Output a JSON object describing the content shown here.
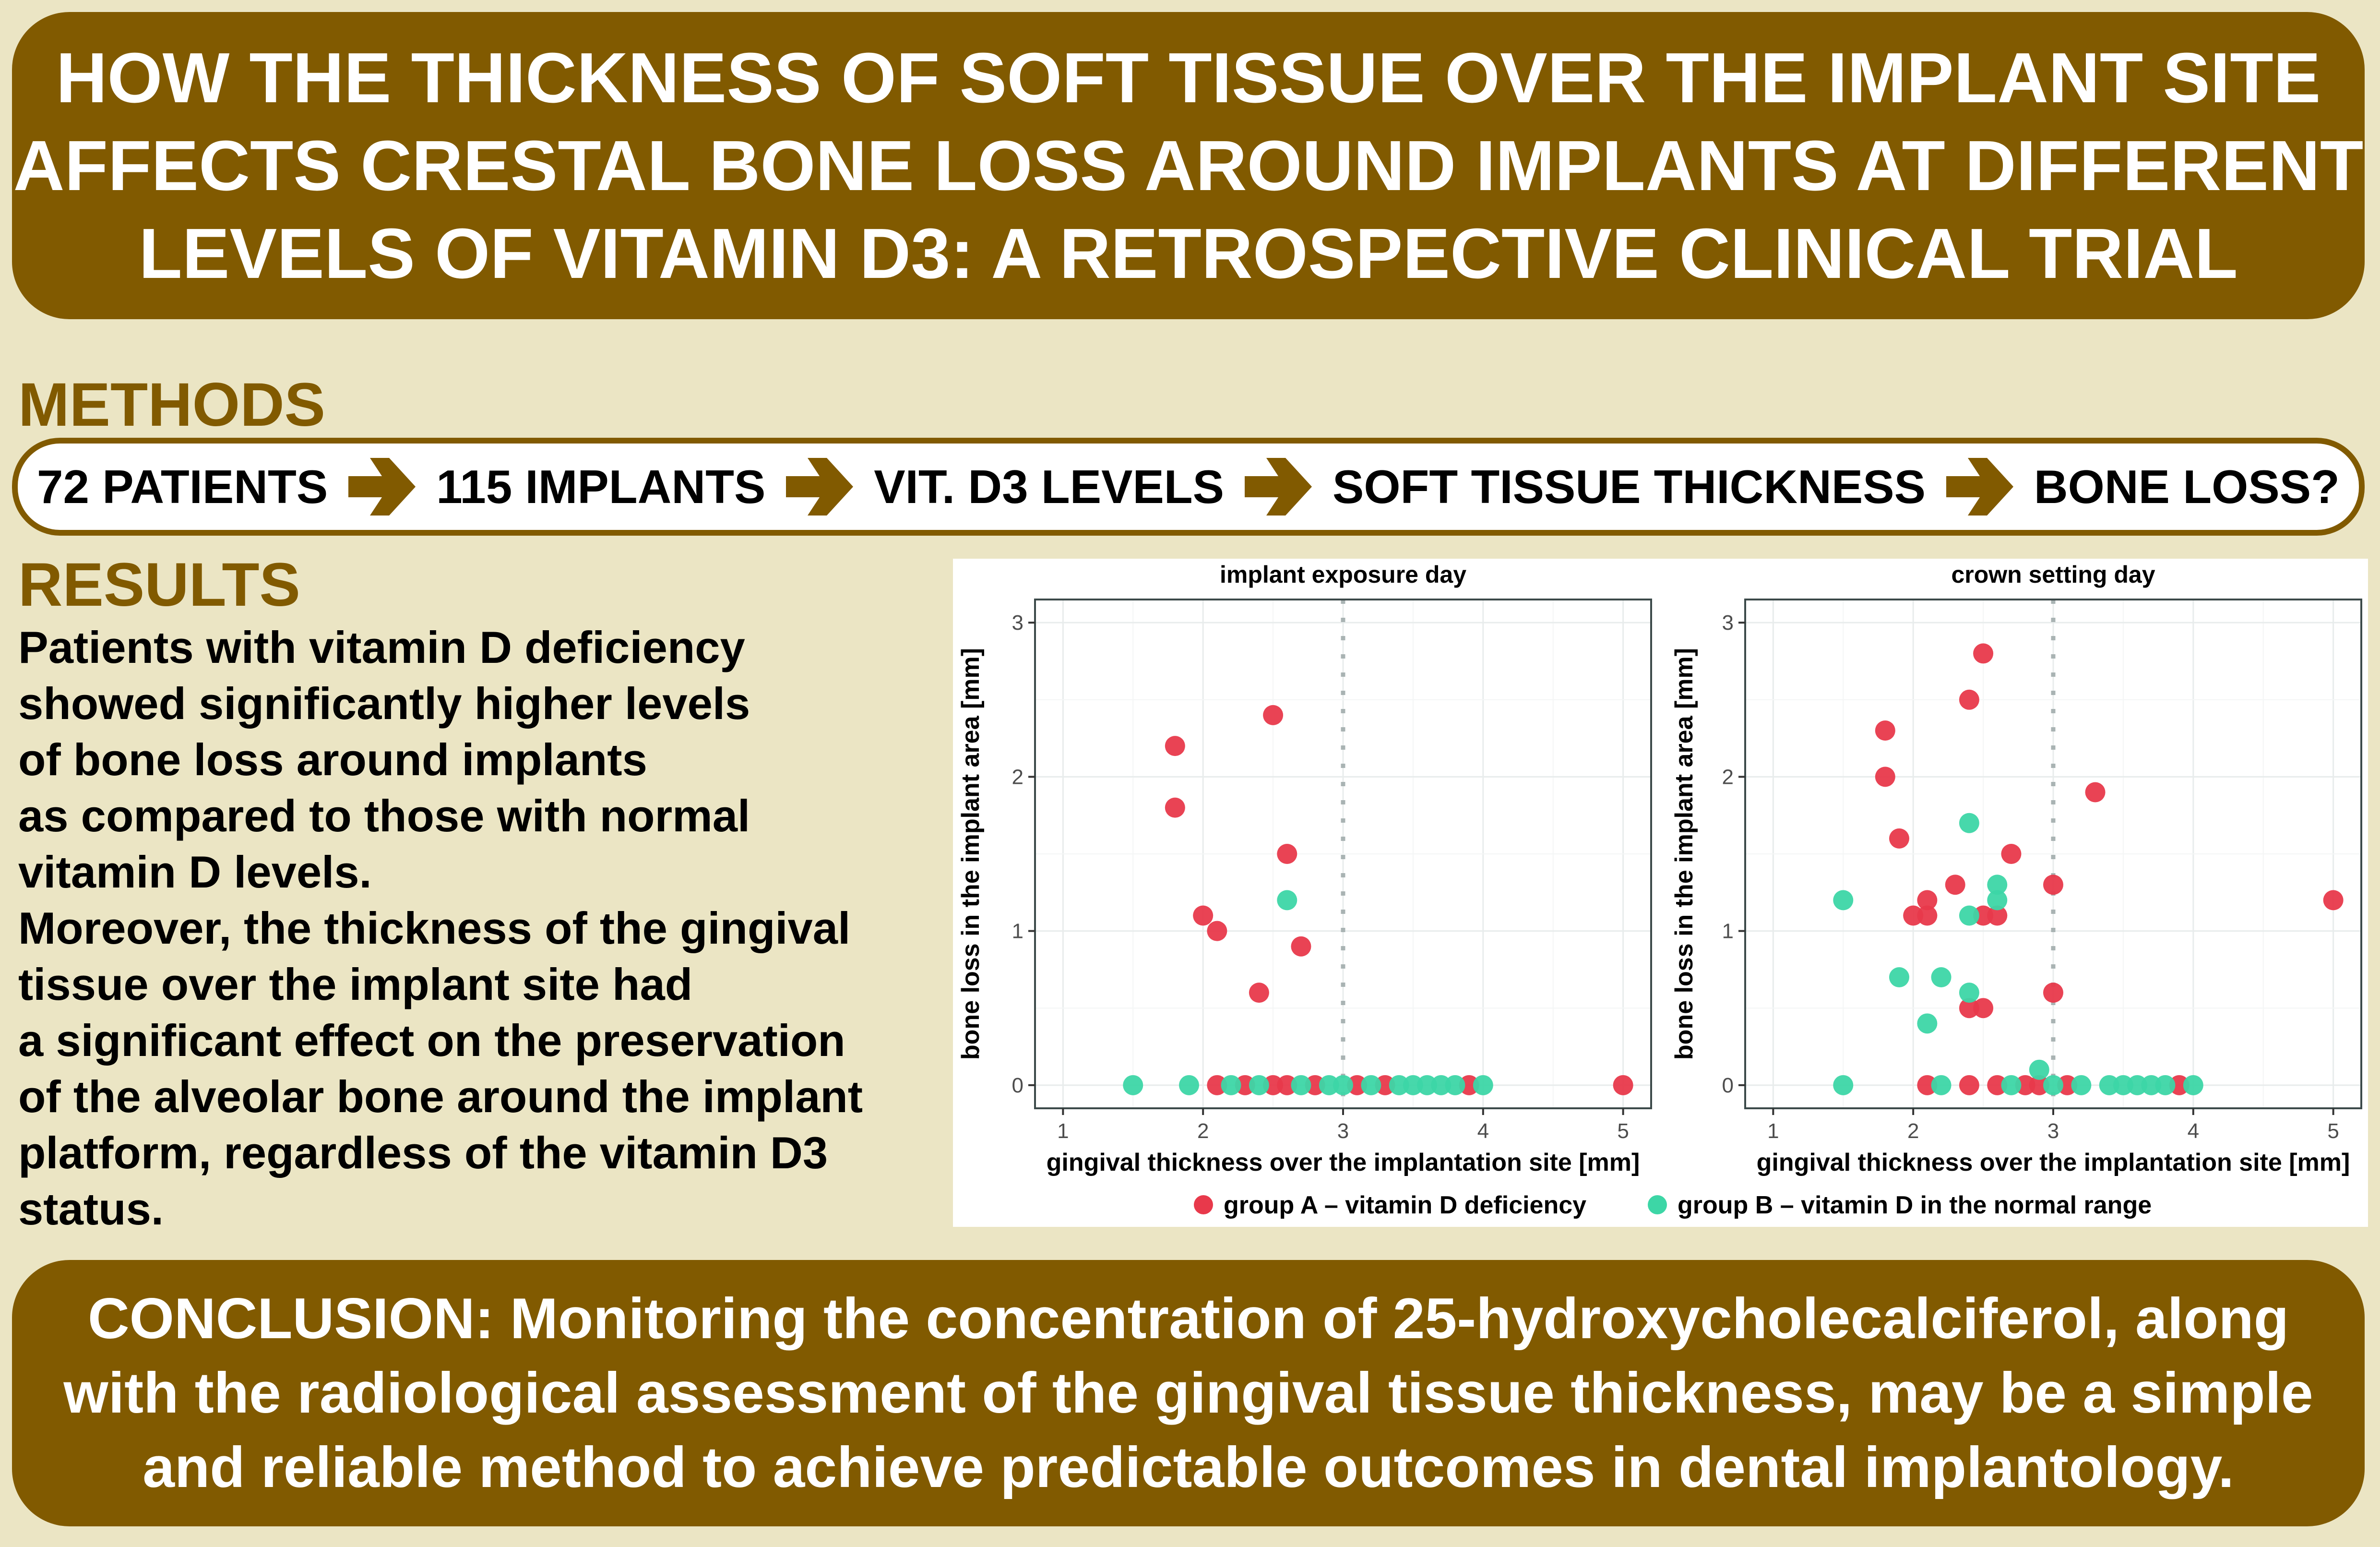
{
  "header": {
    "title_lines": [
      "HOW THE THICKNESS OF SOFT TISSUE OVER THE IMPLANT SITE",
      "AFFECTS CRESTAL BONE LOSS AROUND IMPLANTS AT DIFFERENT",
      "LEVELS OF VITAMIN D3: A RETROSPECTIVE CLINICAL TRIAL"
    ]
  },
  "methods": {
    "heading": "METHODS",
    "steps": [
      "72 PATIENTS",
      "115 IMPLANTS",
      "VIT. D3 LEVELS",
      "SOFT TISSUE THICKNESS",
      "BONE LOSS?"
    ],
    "arrow_icon": "arrow-right-icon"
  },
  "results": {
    "heading": "RESULTS",
    "lines": [
      "Patients with vitamin D deficiency",
      "showed significantly higher levels",
      "of bone loss around implants",
      "as compared to those with normal",
      "vitamin D levels.",
      "Moreover, the thickness of the gingival",
      "tissue over the implant site had",
      "a significant effect on the preservation",
      "of the alveolar bone around the implant",
      "platform, regardless of the vitamin D3",
      "status."
    ]
  },
  "conclusion": {
    "lines": [
      "CONCLUSION: Monitoring the concentration of 25-hydroxycholecalciferol, along",
      "with the radiological assessment of the gingival tissue thickness, may be a simple",
      "and reliable method to achieve predictable outcomes in dental implantology."
    ]
  },
  "colors": {
    "brand": "#815a00",
    "background": "#ebe5c4",
    "group_a": "#e8394b",
    "group_b": "#3dd6a6",
    "reference_line": "#a9b3b3"
  },
  "chart_data": [
    {
      "type": "scatter",
      "title": "implant exposure day",
      "xlabel": "gingival thickness over the implantation site [mm]",
      "ylabel": "bone loss in the implant area [mm]",
      "xlim": [
        0.8,
        5.2
      ],
      "ylim": [
        -0.15,
        3.15
      ],
      "xticks": [
        "1",
        "2",
        "3",
        "4",
        "5"
      ],
      "yticks": [
        "0",
        "1",
        "2",
        "3"
      ],
      "grid": true,
      "reference_x": 3,
      "series": [
        {
          "name": "group A – vitamin D deficiency",
          "color": "#e8394b",
          "points": [
            [
              1.8,
              2.2
            ],
            [
              1.8,
              1.8
            ],
            [
              2.5,
              2.4
            ],
            [
              2.6,
              1.5
            ],
            [
              2.0,
              1.1
            ],
            [
              2.1,
              1.0
            ],
            [
              2.7,
              0.9
            ],
            [
              2.4,
              0.6
            ],
            [
              2.1,
              0
            ],
            [
              2.3,
              0
            ],
            [
              2.5,
              0
            ],
            [
              2.6,
              0
            ],
            [
              2.8,
              0
            ],
            [
              3.1,
              0
            ],
            [
              3.3,
              0
            ],
            [
              3.9,
              0
            ],
            [
              5.0,
              0
            ]
          ]
        },
        {
          "name": "group B – vitamin D in the normal range",
          "color": "#3dd6a6",
          "points": [
            [
              2.6,
              1.2
            ],
            [
              1.5,
              0
            ],
            [
              1.9,
              0
            ],
            [
              2.2,
              0
            ],
            [
              2.4,
              0
            ],
            [
              2.7,
              0
            ],
            [
              2.9,
              0
            ],
            [
              3.0,
              0
            ],
            [
              3.2,
              0
            ],
            [
              3.4,
              0
            ],
            [
              3.5,
              0
            ],
            [
              3.6,
              0
            ],
            [
              3.7,
              0
            ],
            [
              3.8,
              0
            ],
            [
              4.0,
              0
            ]
          ]
        }
      ]
    },
    {
      "type": "scatter",
      "title": "crown setting day",
      "xlabel": "gingival thickness over the implantation site [mm]",
      "ylabel": "bone loss in the implant area [mm]",
      "xlim": [
        0.8,
        5.2
      ],
      "ylim": [
        -0.15,
        3.15
      ],
      "xticks": [
        "1",
        "2",
        "3",
        "4",
        "5"
      ],
      "yticks": [
        "0",
        "1",
        "2",
        "3"
      ],
      "grid": true,
      "reference_x": 3,
      "series": [
        {
          "name": "group A – vitamin D deficiency",
          "color": "#e8394b",
          "points": [
            [
              2.5,
              2.8
            ],
            [
              2.4,
              2.5
            ],
            [
              1.8,
              2.3
            ],
            [
              1.8,
              2.0
            ],
            [
              3.3,
              1.9
            ],
            [
              1.9,
              1.6
            ],
            [
              2.7,
              1.5
            ],
            [
              2.3,
              1.3
            ],
            [
              3.0,
              1.3
            ],
            [
              2.1,
              1.2
            ],
            [
              5.0,
              1.2
            ],
            [
              2.0,
              1.1
            ],
            [
              2.1,
              1.1
            ],
            [
              2.5,
              1.1
            ],
            [
              2.6,
              1.1
            ],
            [
              3.0,
              0.6
            ],
            [
              2.4,
              0.5
            ],
            [
              2.5,
              0.5
            ],
            [
              2.1,
              0
            ],
            [
              2.4,
              0
            ],
            [
              2.6,
              0
            ],
            [
              2.8,
              0
            ],
            [
              2.9,
              0
            ],
            [
              3.1,
              0
            ],
            [
              3.9,
              0
            ]
          ]
        },
        {
          "name": "group B – vitamin D in the normal range",
          "color": "#3dd6a6",
          "points": [
            [
              2.4,
              1.7
            ],
            [
              2.6,
              1.3
            ],
            [
              2.6,
              1.2
            ],
            [
              1.5,
              1.2
            ],
            [
              2.4,
              1.1
            ],
            [
              1.9,
              0.7
            ],
            [
              2.2,
              0.7
            ],
            [
              2.4,
              0.6
            ],
            [
              2.1,
              0.4
            ],
            [
              2.9,
              0.1
            ],
            [
              1.5,
              0
            ],
            [
              2.2,
              0
            ],
            [
              2.7,
              0
            ],
            [
              3.0,
              0
            ],
            [
              3.2,
              0
            ],
            [
              3.4,
              0
            ],
            [
              3.5,
              0
            ],
            [
              3.6,
              0
            ],
            [
              3.7,
              0
            ],
            [
              3.8,
              0
            ],
            [
              4.0,
              0
            ]
          ]
        }
      ]
    }
  ],
  "legend": {
    "placement": "bottom",
    "items": [
      "group A – vitamin D deficiency",
      "group B – vitamin D in the normal range"
    ]
  }
}
